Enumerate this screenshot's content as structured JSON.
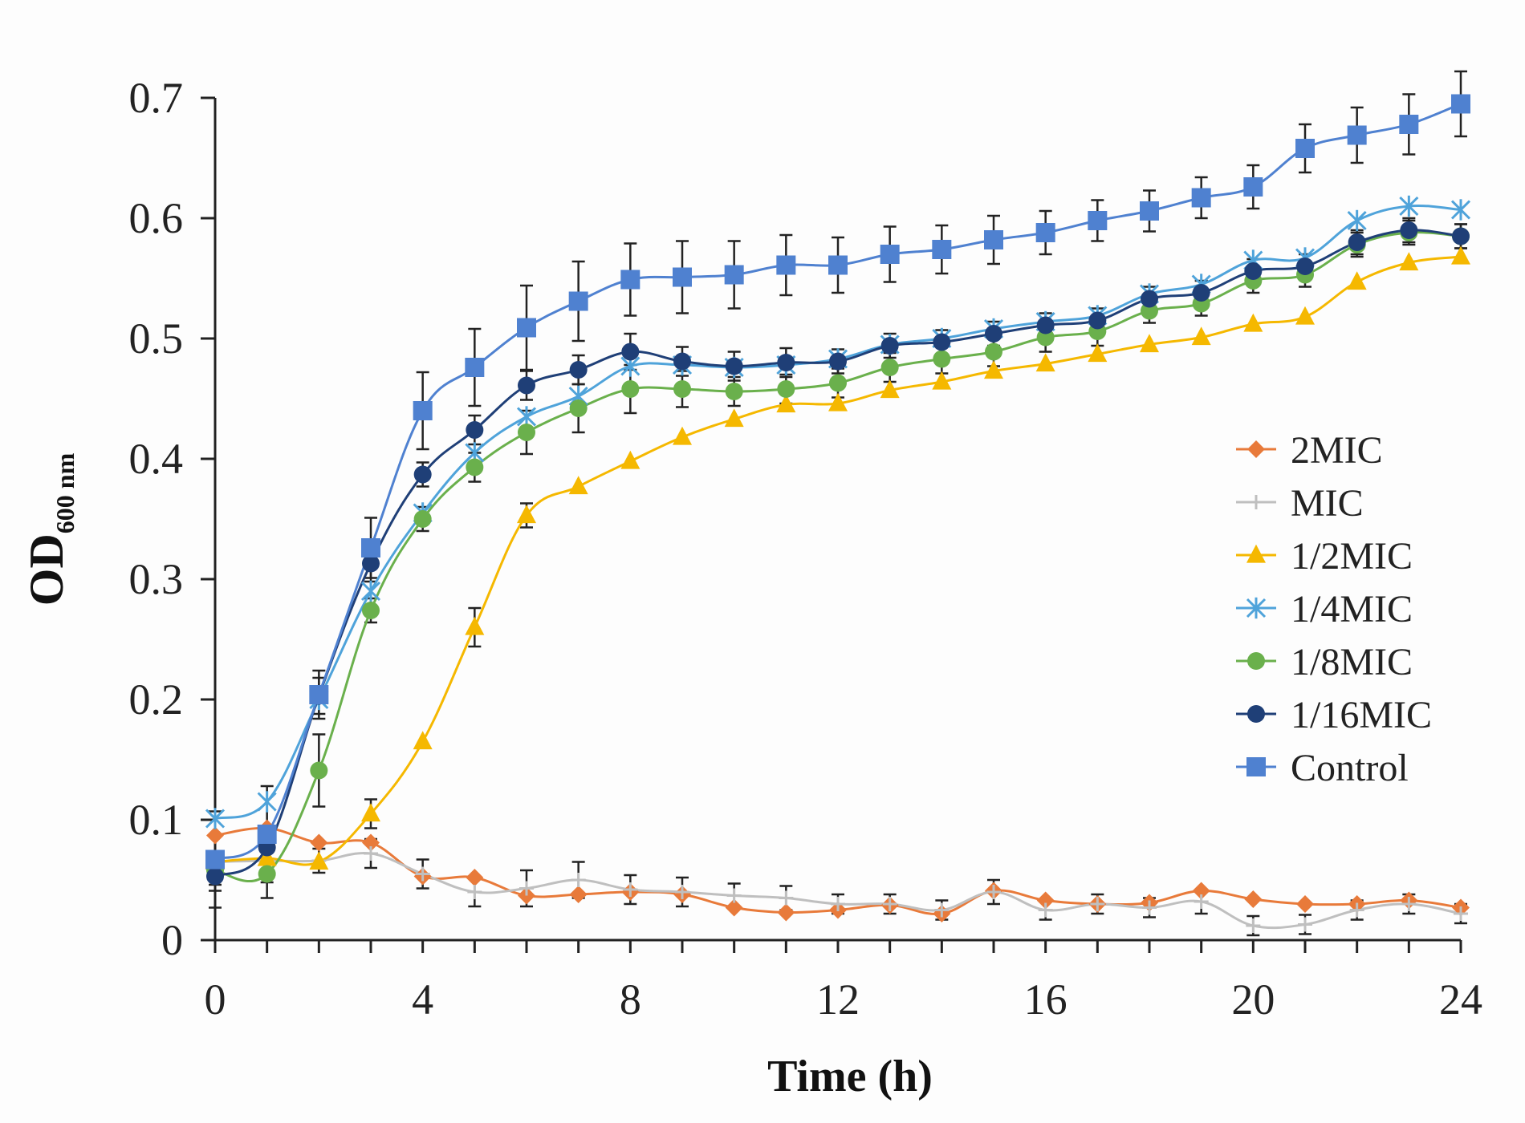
{
  "chart_data": {
    "type": "line",
    "title": "",
    "xlabel": "Time (h)",
    "ylabel": {
      "main": "OD",
      "subscript": "600 nm"
    },
    "x": [
      0,
      1,
      2,
      3,
      4,
      5,
      6,
      7,
      8,
      9,
      10,
      11,
      12,
      13,
      14,
      15,
      16,
      17,
      18,
      19,
      20,
      21,
      22,
      23,
      24
    ],
    "xticks": [
      0,
      4,
      8,
      12,
      16,
      20,
      24
    ],
    "xtick_labels": [
      "0",
      "4",
      "8",
      "12",
      "16",
      "20",
      "24"
    ],
    "xlim": [
      0,
      24
    ],
    "ylim": [
      0,
      0.7
    ],
    "yticks": [
      0,
      0.1,
      0.2,
      0.3,
      0.4,
      0.5,
      0.6,
      0.7
    ],
    "ytick_labels": [
      "0",
      "0.1",
      "0.2",
      "0.3",
      "0.4",
      "0.5",
      "0.6",
      "0.7"
    ],
    "grid": false,
    "legend_position": "right",
    "series": [
      {
        "name": "2MIC",
        "color": "#E87A3A",
        "marker": "diamond",
        "values": [
          0.087,
          0.093,
          0.081,
          0.081,
          0.053,
          0.052,
          0.037,
          0.038,
          0.04,
          0.038,
          0.027,
          0.023,
          0.025,
          0.029,
          0.022,
          0.041,
          0.033,
          0.03,
          0.031,
          0.041,
          0.034,
          0.03,
          0.03,
          0.033,
          0.027
        ],
        "errors": [
          0.0,
          0.0,
          0.0,
          0.0,
          0.0,
          0.0,
          0.0,
          0.0,
          0.0,
          0.0,
          0.0,
          0.0,
          0.0,
          0.0,
          0.0,
          0.0,
          0.0,
          0.0,
          0.0,
          0.0,
          0.0,
          0.0,
          0.0,
          0.0,
          0.0
        ]
      },
      {
        "name": "MIC",
        "color": "#BFBFBF",
        "marker": "plus",
        "values": [
          0.065,
          0.066,
          0.066,
          0.072,
          0.055,
          0.04,
          0.043,
          0.05,
          0.042,
          0.04,
          0.037,
          0.035,
          0.03,
          0.03,
          0.025,
          0.04,
          0.025,
          0.03,
          0.027,
          0.032,
          0.012,
          0.013,
          0.025,
          0.03,
          0.022
        ],
        "errors": [
          0.008,
          0.01,
          0.01,
          0.012,
          0.012,
          0.012,
          0.015,
          0.015,
          0.012,
          0.012,
          0.01,
          0.01,
          0.008,
          0.008,
          0.008,
          0.01,
          0.008,
          0.008,
          0.008,
          0.01,
          0.008,
          0.008,
          0.008,
          0.008,
          0.008
        ]
      },
      {
        "name": "1/2MIC",
        "color": "#F5B800",
        "marker": "triangle",
        "values": [
          0.065,
          0.068,
          0.065,
          0.105,
          0.165,
          0.26,
          0.353,
          0.377,
          0.398,
          0.418,
          0.433,
          0.445,
          0.446,
          0.457,
          0.464,
          0.473,
          0.479,
          0.487,
          0.495,
          0.501,
          0.512,
          0.518,
          0.547,
          0.563,
          0.568
        ],
        "errors": [
          0.0,
          0.0,
          0.0,
          0.012,
          0.0,
          0.016,
          0.01,
          0.0,
          0.0,
          0.0,
          0.0,
          0.0,
          0.0,
          0.0,
          0.0,
          0.0,
          0.0,
          0.0,
          0.0,
          0.0,
          0.0,
          0.0,
          0.0,
          0.0,
          0.0
        ]
      },
      {
        "name": "1/4MIC",
        "color": "#4FA3DA",
        "marker": "star",
        "values": [
          0.101,
          0.115,
          0.2,
          0.29,
          0.355,
          0.405,
          0.435,
          0.452,
          0.477,
          0.478,
          0.476,
          0.478,
          0.483,
          0.495,
          0.5,
          0.508,
          0.514,
          0.519,
          0.537,
          0.545,
          0.565,
          0.567,
          0.598,
          0.61,
          0.607
        ],
        "errors": [
          0.0,
          0.0,
          0.0,
          0.0,
          0.0,
          0.0,
          0.0,
          0.0,
          0.0,
          0.0,
          0.0,
          0.0,
          0.0,
          0.0,
          0.0,
          0.0,
          0.0,
          0.0,
          0.0,
          0.0,
          0.0,
          0.0,
          0.0,
          0.0,
          0.0
        ]
      },
      {
        "name": "1/8MIC",
        "color": "#6AB04C",
        "marker": "circle",
        "values": [
          0.058,
          0.055,
          0.141,
          0.274,
          0.35,
          0.393,
          0.422,
          0.442,
          0.458,
          0.458,
          0.456,
          0.458,
          0.463,
          0.476,
          0.483,
          0.489,
          0.501,
          0.506,
          0.523,
          0.529,
          0.548,
          0.553,
          0.578,
          0.588,
          0.585
        ],
        "errors": [
          0.012,
          0.02,
          0.03,
          0.01,
          0.01,
          0.012,
          0.018,
          0.02,
          0.02,
          0.015,
          0.012,
          0.012,
          0.012,
          0.012,
          0.012,
          0.012,
          0.012,
          0.012,
          0.01,
          0.01,
          0.01,
          0.01,
          0.01,
          0.01,
          0.01
        ]
      },
      {
        "name": "1/16MIC",
        "color": "#1F3F77",
        "marker": "circle",
        "values": [
          0.053,
          0.077,
          0.203,
          0.313,
          0.387,
          0.424,
          0.461,
          0.474,
          0.489,
          0.481,
          0.477,
          0.48,
          0.481,
          0.494,
          0.497,
          0.504,
          0.511,
          0.515,
          0.533,
          0.538,
          0.556,
          0.56,
          0.58,
          0.59,
          0.585
        ],
        "errors": [
          0.012,
          0.012,
          0.015,
          0.015,
          0.01,
          0.012,
          0.012,
          0.012,
          0.015,
          0.012,
          0.012,
          0.012,
          0.01,
          0.01,
          0.01,
          0.01,
          0.01,
          0.01,
          0.01,
          0.01,
          0.01,
          0.01,
          0.01,
          0.01,
          0.01
        ]
      },
      {
        "name": "Control",
        "color": "#4F81D0",
        "marker": "square",
        "values": [
          0.067,
          0.088,
          0.204,
          0.326,
          0.44,
          0.476,
          0.509,
          0.531,
          0.549,
          0.551,
          0.553,
          0.561,
          0.561,
          0.57,
          0.574,
          0.582,
          0.588,
          0.598,
          0.606,
          0.617,
          0.626,
          0.658,
          0.669,
          0.678,
          0.695
        ],
        "errors": [
          0.04,
          0.04,
          0.02,
          0.025,
          0.032,
          0.032,
          0.035,
          0.033,
          0.03,
          0.03,
          0.028,
          0.025,
          0.023,
          0.023,
          0.02,
          0.02,
          0.018,
          0.017,
          0.017,
          0.017,
          0.018,
          0.02,
          0.023,
          0.025,
          0.027
        ]
      }
    ]
  }
}
